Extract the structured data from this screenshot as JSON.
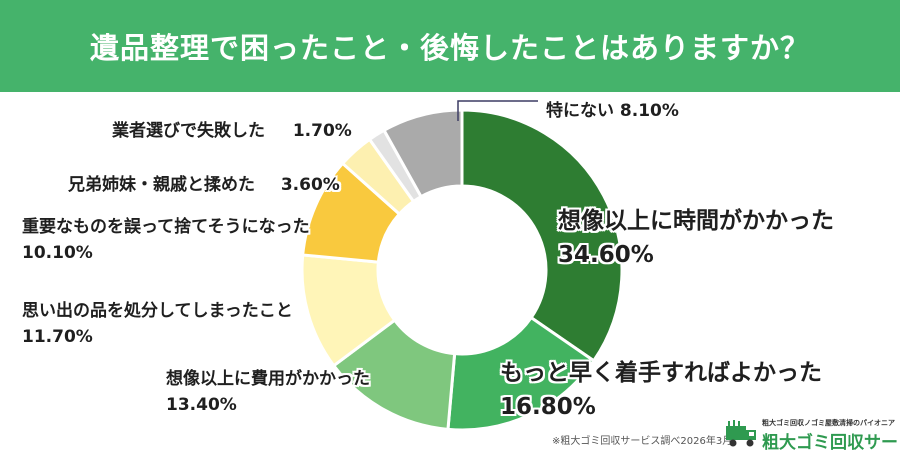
{
  "title": "遺品整理で困ったこと・後悔したことはありますか？",
  "source_note": "※粗大ゴミ回収サービス調べ2026年3月",
  "logo": {
    "tagline": "粗大ゴミ回収ノゴミ屋敷清掃のパイオニア",
    "name": "粗大ゴミ回収サービス",
    "icon": "truck-icon"
  },
  "colors": {
    "header": "#45b36b"
  },
  "chart_data": {
    "type": "pie",
    "donut": true,
    "title": "遺品整理で困ったこと・後悔したことはありますか？",
    "slices": [
      {
        "label": "想像以上に時間がかかった",
        "value": 34.6,
        "value_label": "34.60%",
        "color": "#2e7d32"
      },
      {
        "label": "もっと早く着手すればよかった",
        "value": 16.8,
        "value_label": "16.80%",
        "color": "#42b360"
      },
      {
        "label": "想像以上に費用がかかった",
        "value": 13.4,
        "value_label": "13.40%",
        "color": "#7fc77e"
      },
      {
        "label": "思い出の品を処分してしまったこと",
        "value": 11.7,
        "value_label": "11.70%",
        "color": "#fff5b8"
      },
      {
        "label": "重要なものを誤って捨てそうになった",
        "value": 10.1,
        "value_label": "10.10%",
        "color": "#f9c93e"
      },
      {
        "label": "兄弟姉妹・親戚と揉めた",
        "value": 3.6,
        "value_label": "3.60%",
        "color": "#fdf0b0"
      },
      {
        "label": "業者選びで失敗した",
        "value": 1.7,
        "value_label": "1.70%",
        "color": "#e2e2e2"
      },
      {
        "label": "特にない",
        "value": 8.1,
        "value_label": "8.10%",
        "color": "#aaaaaa"
      }
    ]
  }
}
